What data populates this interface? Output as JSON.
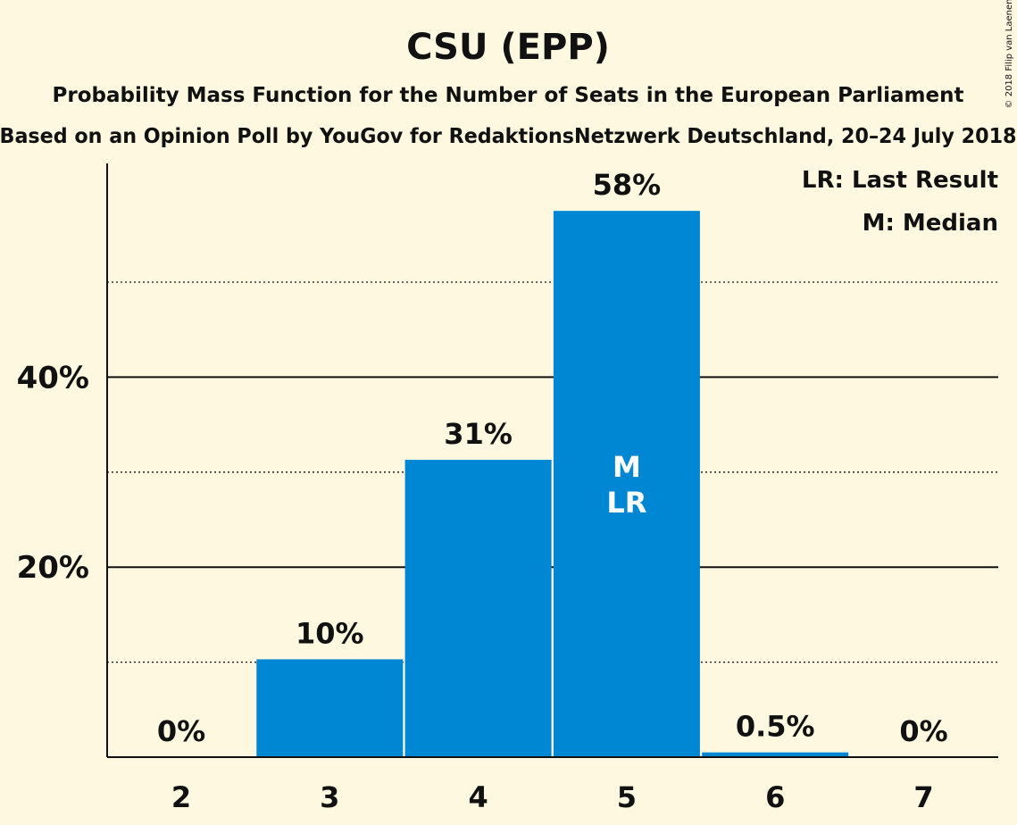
{
  "copyright": "© 2018 Filip van Laenen",
  "chart_data": {
    "type": "bar",
    "title": "CSU (EPP)",
    "subtitle": "Probability Mass Function for the Number of Seats in the European Parliament",
    "subtitle2": "Based on an Opinion Poll by YouGov for RedaktionsNetzwerk Deutschland, 20–24 July 2018",
    "categories": [
      "2",
      "3",
      "4",
      "5",
      "6",
      "7"
    ],
    "values": [
      0,
      10.3,
      31.3,
      57.5,
      0.5,
      0
    ],
    "data_labels": [
      "0%",
      "10%",
      "31%",
      "58%",
      "0.5%",
      "0%"
    ],
    "yticks": [
      {
        "value": 20,
        "label": "20%"
      },
      {
        "value": 40,
        "label": "40%"
      }
    ],
    "minor_gridlines": [
      10,
      30,
      50
    ],
    "ylim": [
      0,
      62.5
    ],
    "bar_color": "#0087d3",
    "markers": [
      {
        "category": "5",
        "lines": [
          "M",
          "LR"
        ]
      }
    ],
    "legend": [
      "LR: Last Result",
      "M: Median"
    ],
    "legend_position": "top-right"
  }
}
